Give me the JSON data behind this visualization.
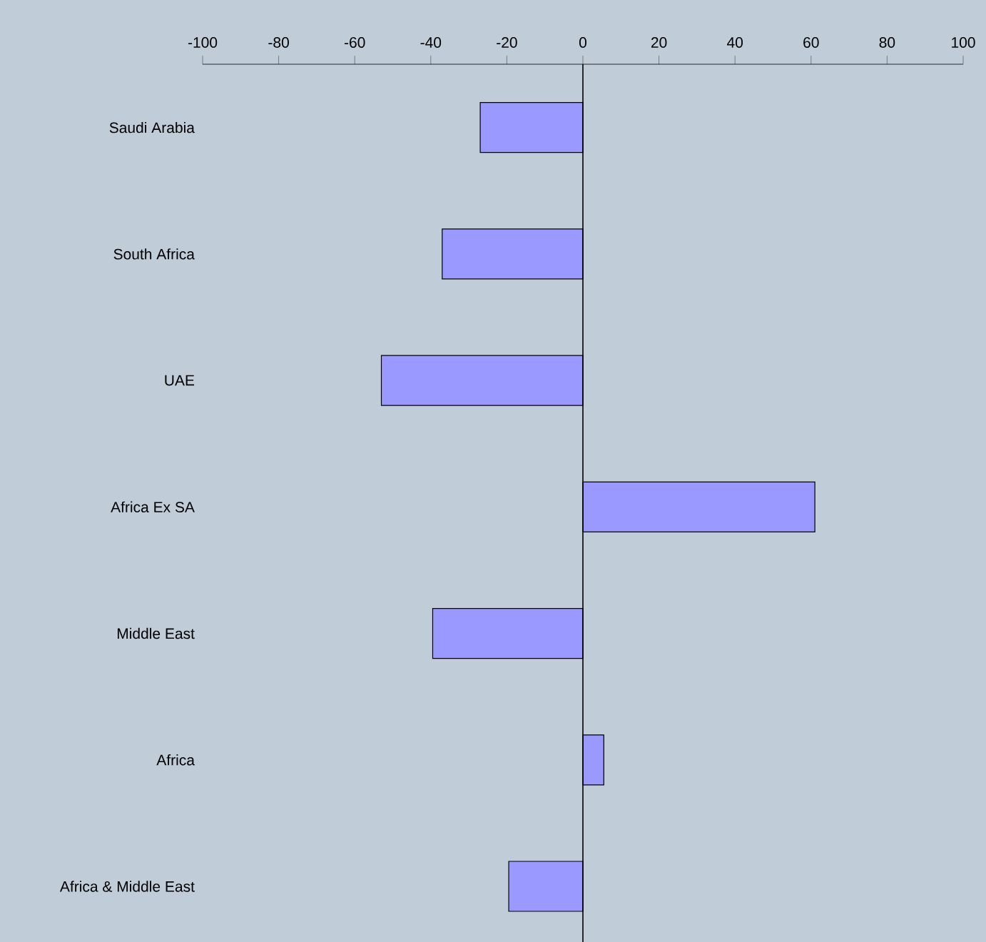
{
  "chart_data": {
    "type": "bar",
    "orientation": "horizontal",
    "categories": [
      "Saudi Arabia",
      "South Africa",
      "UAE",
      "Africa Ex SA",
      "Middle East",
      "Africa",
      "Africa & Middle East"
    ],
    "values": [
      -27,
      -37,
      -53,
      61,
      -39.5,
      5.5,
      -19.5
    ],
    "color": "#9999ff",
    "xlim": [
      -100,
      100
    ],
    "xticks": [
      -100,
      -80,
      -60,
      -40,
      -20,
      0,
      20,
      40,
      60,
      80,
      100
    ]
  }
}
